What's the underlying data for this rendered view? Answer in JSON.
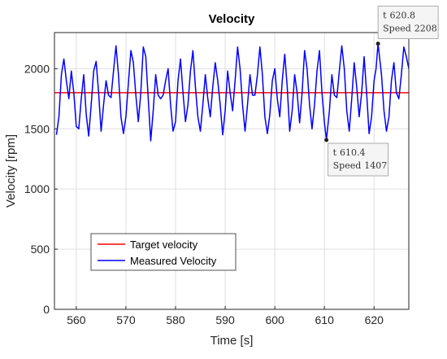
{
  "chart_data": {
    "type": "line",
    "title": "Velocity",
    "x_label": "Time [s]",
    "y_label": "Velocity [rpm]",
    "xlim": [
      555.6,
      627
    ],
    "ylim": [
      0,
      2300
    ],
    "xticks": [
      560,
      570,
      580,
      590,
      600,
      610,
      620
    ],
    "yticks": [
      0,
      500,
      1000,
      1500,
      2000
    ],
    "grid": true,
    "legend_position": "lower left",
    "series": [
      {
        "name": "Target velocity",
        "color": "#ff0000",
        "x": [
          555.6,
          627
        ],
        "values": [
          1800,
          1800
        ]
      },
      {
        "name": "Measured Velocity",
        "color": "#0000ff",
        "x": [
          556,
          556.5,
          557,
          557.5,
          558,
          558.5,
          559,
          559.5,
          560,
          560.5,
          561,
          561.5,
          562,
          562.5,
          563,
          563.5,
          564,
          564.5,
          565,
          565.5,
          566,
          566.5,
          567,
          567.5,
          568,
          568.5,
          569,
          569.5,
          570,
          570.5,
          571,
          571.5,
          572,
          572.5,
          573,
          573.5,
          574,
          574.5,
          575,
          575.5,
          576,
          576.5,
          577,
          577.5,
          578,
          578.5,
          579,
          579.5,
          580,
          580.5,
          581,
          581.5,
          582,
          582.5,
          583,
          583.5,
          584,
          584.5,
          585,
          585.5,
          586,
          586.5,
          587,
          587.5,
          588,
          588.5,
          589,
          589.5,
          590,
          590.5,
          591,
          591.5,
          592,
          592.5,
          593,
          593.5,
          594,
          594.5,
          595,
          595.5,
          596,
          596.5,
          597,
          597.5,
          598,
          598.5,
          599,
          599.5,
          600,
          600.5,
          601,
          601.5,
          602,
          602.5,
          603,
          603.5,
          604,
          604.5,
          605,
          605.5,
          606,
          606.5,
          607,
          607.5,
          608,
          608.5,
          609,
          609.5,
          610,
          610.4,
          611,
          611.5,
          612,
          612.5,
          613,
          613.5,
          614,
          614.5,
          615,
          615.5,
          616,
          616.5,
          617,
          617.5,
          618,
          618.5,
          619,
          619.5,
          620,
          620.4,
          620.8,
          621.5,
          622,
          622.5,
          623,
          623.5,
          624,
          624.5,
          625,
          625.5,
          626,
          626.5,
          627
        ],
        "values": [
          1450,
          1600,
          1950,
          2080,
          1900,
          1750,
          1980,
          1800,
          1520,
          1500,
          1750,
          1950,
          1620,
          1440,
          1700,
          1980,
          2060,
          1800,
          1480,
          1700,
          1900,
          1780,
          1760,
          1980,
          2190,
          1950,
          1600,
          1460,
          1600,
          1880,
          2150,
          2050,
          1780,
          1560,
          1800,
          2180,
          2100,
          1750,
          1400,
          1650,
          1950,
          1780,
          1750,
          1780,
          1900,
          2000,
          1700,
          1480,
          1560,
          1900,
          2080,
          1800,
          1560,
          1700,
          1980,
          2150,
          1850,
          1600,
          1480,
          1700,
          1950,
          1750,
          1600,
          1850,
          2050,
          1900,
          1700,
          1450,
          1650,
          1980,
          1800,
          1650,
          1900,
          2180,
          2000,
          1700,
          1480,
          1700,
          1950,
          1780,
          1780,
          1950,
          2180,
          1950,
          1600,
          1460,
          1620,
          1900,
          2000,
          1750,
          1600,
          1900,
          2120,
          1850,
          1480,
          1650,
          1950,
          1800,
          1550,
          1800,
          2150,
          2000,
          1700,
          1500,
          1700,
          1980,
          2150,
          1800,
          1550,
          1407,
          1650,
          1950,
          1780,
          1760,
          1980,
          2190,
          2000,
          1650,
          1480,
          1750,
          2050,
          1850,
          1600,
          1800,
          2100,
          1800,
          1460,
          1600,
          1900,
          2000,
          2208,
          1950,
          1650,
          1480,
          1600,
          1900,
          2050,
          1800,
          1750,
          1950,
          2180,
          2100,
          2000
        ]
      }
    ],
    "annotations": [
      {
        "x_label": "t",
        "x": 620.8,
        "y_label": "Speed",
        "y": 2208
      },
      {
        "x_label": "t",
        "x": 610.4,
        "y_label": "Speed",
        "y": 1407
      }
    ]
  }
}
